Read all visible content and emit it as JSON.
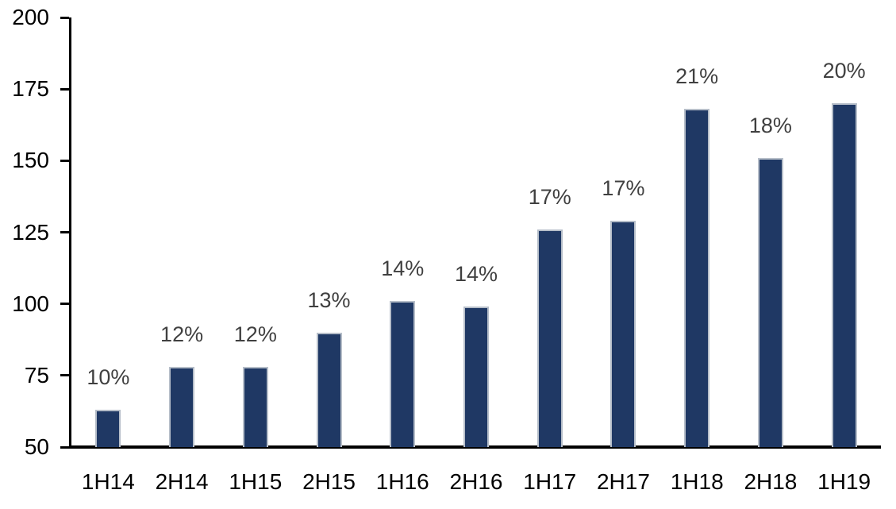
{
  "chart_data": {
    "type": "bar",
    "title": "",
    "xlabel": "",
    "ylabel": "",
    "categories": [
      "1H14",
      "2H14",
      "1H15",
      "2H15",
      "1H16",
      "2H16",
      "1H17",
      "2H17",
      "1H18",
      "2H18",
      "1H19"
    ],
    "values": [
      63,
      78,
      78,
      90,
      101,
      99,
      126,
      129,
      168,
      151,
      170
    ],
    "data_labels": [
      "10%",
      "12%",
      "12%",
      "13%",
      "14%",
      "14%",
      "17%",
      "17%",
      "21%",
      "18%",
      "20%"
    ],
    "ylim": [
      50,
      200
    ],
    "yticks": [
      50,
      75,
      100,
      125,
      150,
      175,
      200
    ],
    "grid": false,
    "legend_position": "none",
    "colors": {
      "bar_fill": "#1f3864",
      "bar_border": "#b6bec9",
      "data_label": "#404040",
      "axis": "#000000",
      "tick_label": "#000000",
      "background": "#ffffff"
    }
  }
}
